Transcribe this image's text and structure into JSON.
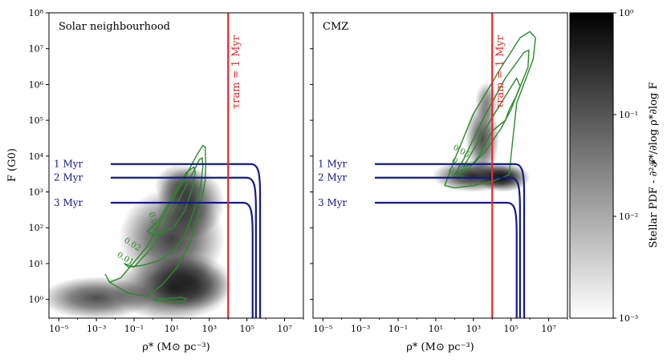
{
  "chart_data": [
    {
      "type": "contour",
      "title": "Solar neighbourhood",
      "xlabel": "ρ* (M⊙ pc⁻³)",
      "ylabel": "F (G0)",
      "xscale": "log",
      "yscale": "log",
      "xlim": [
        3e-06,
        100000000.0
      ],
      "ylim": [
        0.3,
        100000000.0
      ],
      "x_ticks": [
        {
          "v": 1e-05,
          "label": "10⁻⁵"
        },
        {
          "v": 0.001,
          "label": "10⁻³"
        },
        {
          "v": 0.1,
          "label": "10⁻¹"
        },
        {
          "v": 10,
          "label": "10¹"
        },
        {
          "v": 1000.0,
          "label": "10³"
        },
        {
          "v": 100000.0,
          "label": "10⁵"
        },
        {
          "v": 10000000.0,
          "label": "10⁷"
        }
      ],
      "y_ticks": [
        {
          "v": 1,
          "label": "10⁰"
        },
        {
          "v": 10,
          "label": "10¹"
        },
        {
          "v": 100,
          "label": "10²"
        },
        {
          "v": 1000.0,
          "label": "10³"
        },
        {
          "v": 10000.0,
          "label": "10⁴"
        },
        {
          "v": 100000.0,
          "label": "10⁵"
        },
        {
          "v": 1000000.0,
          "label": "10⁶"
        },
        {
          "v": 10000000.0,
          "label": "10⁷"
        },
        {
          "v": 100000000.0,
          "label": "10⁸"
        }
      ],
      "tram": {
        "x": 10000,
        "label": "τram = 1 Myr",
        "color": "#e8282b"
      },
      "age_curves": [
        {
          "label": "1 Myr",
          "F": 6000,
          "rho_cut": 500000,
          "color": "#141a8a"
        },
        {
          "label": "2 Myr",
          "F": 2500,
          "rho_cut": 300000,
          "color": "#141a8a"
        },
        {
          "label": "3 Myr",
          "F": 500,
          "rho_cut": 200000,
          "color": "#141a8a"
        }
      ],
      "contour_levels": [
        "0.01",
        "0.02",
        "0.05"
      ],
      "contour_color": "#2a8a2a",
      "contours": [
        [
          [
            0.003,
            5
          ],
          [
            0.005,
            3
          ],
          [
            0.02,
            4
          ],
          [
            0.5,
            30
          ],
          [
            5,
            300
          ],
          [
            40,
            2000
          ],
          [
            200,
            10000
          ],
          [
            450,
            20000
          ],
          [
            600,
            18000
          ],
          [
            650,
            6000
          ],
          [
            600,
            2000
          ],
          [
            300,
            300
          ],
          [
            100,
            40
          ],
          [
            20,
            8
          ],
          [
            3,
            2.5
          ],
          [
            0.5,
            1.2
          ],
          [
            0.05,
            1.5
          ],
          [
            0.005,
            3
          ]
        ],
        [
          [
            0.03,
            10
          ],
          [
            0.1,
            8
          ],
          [
            1,
            30
          ],
          [
            10,
            250
          ],
          [
            80,
            2000
          ],
          [
            300,
            8000
          ],
          [
            420,
            9000
          ],
          [
            450,
            5000
          ],
          [
            350,
            1500
          ],
          [
            150,
            300
          ],
          [
            50,
            60
          ],
          [
            10,
            20
          ],
          [
            2,
            12
          ],
          [
            0.3,
            9
          ],
          [
            0.05,
            8
          ],
          [
            0.03,
            10
          ]
        ],
        [
          [
            0.5,
            80
          ],
          [
            2,
            150
          ],
          [
            15,
            1000
          ],
          [
            60,
            3500
          ],
          [
            150,
            5000
          ],
          [
            180,
            3500
          ],
          [
            120,
            1200
          ],
          [
            50,
            300
          ],
          [
            12,
            100
          ],
          [
            3,
            70
          ],
          [
            1,
            65
          ],
          [
            0.5,
            80
          ]
        ],
        [
          [
            1,
            1.0
          ],
          [
            5,
            1.05
          ],
          [
            30,
            1.15
          ],
          [
            60,
            1.05
          ],
          [
            50,
            0.9
          ],
          [
            10,
            0.85
          ],
          [
            2,
            0.9
          ],
          [
            1,
            1.0
          ]
        ]
      ],
      "contour_labels": [
        {
          "text": "0.05",
          "x": 0.8,
          "y": 150,
          "angle": 75
        },
        {
          "text": "0.02",
          "x": 0.07,
          "y": 30,
          "angle": 32
        },
        {
          "text": "0.01",
          "x": 0.03,
          "y": 12,
          "angle": 30
        }
      ],
      "density": [
        {
          "x": 0.001,
          "y": 1.1,
          "rx": 3,
          "ry": 0.6,
          "op": 0.7
        },
        {
          "x": 10,
          "y": 2,
          "rx": 3.2,
          "ry": 0.9,
          "op": 0.8
        },
        {
          "x": 100,
          "y": 3,
          "rx": 2.2,
          "ry": 0.8,
          "op": 0.65
        },
        {
          "x": 10,
          "y": 50,
          "rx": 2.8,
          "ry": 1.4,
          "op": 0.75
        },
        {
          "x": 100,
          "y": 500,
          "rx": 1.8,
          "ry": 1.0,
          "op": 0.7
        },
        {
          "x": 30,
          "y": 1500,
          "rx": 1.4,
          "ry": 0.6,
          "op": 0.55
        }
      ]
    },
    {
      "type": "contour",
      "title": "CMZ",
      "xlabel": "ρ* (M⊙ pc⁻³)",
      "ylabel": "",
      "xscale": "log",
      "yscale": "log",
      "xlim": [
        3e-06,
        100000000.0
      ],
      "ylim": [
        0.3,
        100000000.0
      ],
      "x_ticks": [
        {
          "v": 1e-05,
          "label": "10⁻⁵"
        },
        {
          "v": 0.001,
          "label": "10⁻³"
        },
        {
          "v": 0.1,
          "label": "10⁻¹"
        },
        {
          "v": 10,
          "label": "10¹"
        },
        {
          "v": 1000.0,
          "label": "10³"
        },
        {
          "v": 100000.0,
          "label": "10⁵"
        },
        {
          "v": 10000000.0,
          "label": "10⁷"
        }
      ],
      "tram": {
        "x": 10000,
        "label": "τram = 1 Myr",
        "color": "#e8282b"
      },
      "age_curves": [
        {
          "label": "1 Myr",
          "F": 6000,
          "rho_cut": 500000,
          "color": "#141a8a"
        },
        {
          "label": "2 Myr",
          "F": 2500,
          "rho_cut": 300000,
          "color": "#141a8a"
        },
        {
          "label": "3 Myr",
          "F": 500,
          "rho_cut": 200000,
          "color": "#141a8a"
        }
      ],
      "contour_levels": [
        "0.01",
        "0.02",
        "0.05"
      ],
      "contour_color": "#2a8a2a",
      "contours": [
        [
          [
            30,
            1500
          ],
          [
            100,
            8000
          ],
          [
            1000,
            150000
          ],
          [
            30000,
            3000000
          ],
          [
            300000,
            20000000
          ],
          [
            1000000,
            30000000
          ],
          [
            2000000,
            20000000
          ],
          [
            1500000,
            5000000
          ],
          [
            400000,
            800000
          ],
          [
            200000,
            300000
          ],
          [
            100000,
            10000
          ],
          [
            80000,
            3000
          ],
          [
            10000,
            2000
          ],
          [
            1000,
            1500
          ],
          [
            100,
            1300
          ],
          [
            30,
            1500
          ]
        ],
        [
          [
            100,
            3000
          ],
          [
            300,
            8000
          ],
          [
            3000,
            100000
          ],
          [
            50000,
            1500000
          ],
          [
            500000,
            8000000
          ],
          [
            900000,
            9000000
          ],
          [
            800000,
            3000000
          ],
          [
            200000,
            500000
          ],
          [
            80000,
            200000
          ],
          [
            50000,
            100000
          ],
          [
            10000,
            50000
          ],
          [
            2000,
            10000
          ],
          [
            500,
            4000
          ],
          [
            100,
            3000
          ]
        ],
        [
          [
            300,
            5000
          ],
          [
            1000,
            15000
          ],
          [
            10000,
            120000
          ],
          [
            80000,
            700000
          ],
          [
            200000,
            1500000
          ],
          [
            300000,
            900000
          ],
          [
            100000,
            200000
          ],
          [
            30000,
            60000
          ],
          [
            5000,
            15000
          ],
          [
            1000,
            6000
          ],
          [
            300,
            5000
          ]
        ]
      ],
      "contour_labels": [
        {
          "text": "0.05",
          "x": 200,
          "y": 12000,
          "angle": 30
        },
        {
          "text": "0.02",
          "x": 150,
          "y": 5000,
          "angle": 40
        },
        {
          "text": "0.01",
          "x": 100,
          "y": 2700,
          "angle": 40
        }
      ],
      "density": [
        {
          "x": 1000,
          "y": 2800,
          "rx": 2.2,
          "ry": 0.45,
          "op": 0.85
        },
        {
          "x": 40000,
          "y": 2500,
          "rx": 1.4,
          "ry": 0.4,
          "op": 0.95
        },
        {
          "x": 3000,
          "y": 30000,
          "rx": 0.9,
          "ry": 1.0,
          "op": 0.7
        },
        {
          "x": 5000,
          "y": 300000,
          "rx": 0.6,
          "ry": 0.6,
          "op": 0.5
        }
      ]
    }
  ],
  "colorbar": {
    "label": "Stellar PDF - ∂²𝓕*/∂log ρ*∂log F",
    "scale": "log",
    "range": [
      0.001,
      1
    ],
    "ticks": [
      {
        "v": 1,
        "label": "10⁰"
      },
      {
        "v": 0.1,
        "label": "10⁻¹"
      },
      {
        "v": 0.01,
        "label": "10⁻²"
      },
      {
        "v": 0.001,
        "label": "10⁻³"
      }
    ]
  }
}
